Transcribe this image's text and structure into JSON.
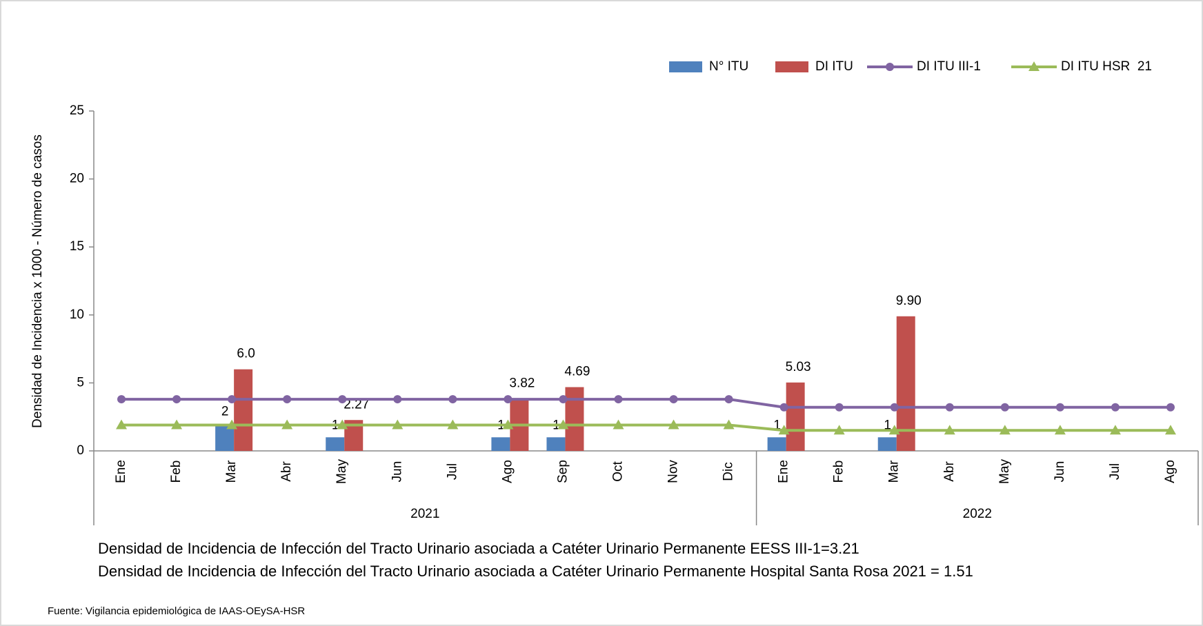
{
  "chart_data": {
    "type": "bar",
    "y_label": "Densidad de Incidencia x 1000  - Número de casos",
    "categories": [
      "Ene",
      "Feb",
      "Mar",
      "Abr",
      "May",
      "Jun",
      "Jul",
      "Ago",
      "Sep",
      "Oct",
      "Nov",
      "Dic",
      "Ene",
      "Feb",
      "Mar",
      "Abr",
      "May",
      "Jun",
      "Jul",
      "Ago"
    ],
    "groups": [
      {
        "label": "2021",
        "count": 12
      },
      {
        "label": "2022",
        "count": 8
      }
    ],
    "series": [
      {
        "name": "N° ITU",
        "type": "bar",
        "color": "#4f81bd",
        "values": [
          null,
          null,
          2,
          null,
          1,
          null,
          null,
          1,
          1,
          null,
          null,
          null,
          1,
          null,
          1,
          null,
          null,
          null,
          null,
          null
        ]
      },
      {
        "name": "DI ITU",
        "type": "bar",
        "color": "#c0504d",
        "values": [
          null,
          null,
          6,
          null,
          2.27,
          null,
          null,
          3.82,
          4.69,
          null,
          null,
          null,
          5.03,
          null,
          9.9,
          null,
          null,
          null,
          null,
          null
        ],
        "value_labels": [
          null,
          null,
          "6.0",
          null,
          "2.27",
          null,
          null,
          "3.82",
          "4.69",
          null,
          null,
          null,
          "5.03",
          null,
          "9.90",
          null,
          null,
          null,
          null,
          null
        ]
      },
      {
        "name": "DI ITU III-1",
        "type": "line",
        "marker": "circle",
        "color": "#8064a2",
        "values": [
          3.8,
          3.8,
          3.8,
          3.8,
          3.8,
          3.8,
          3.8,
          3.8,
          3.8,
          3.8,
          3.8,
          3.8,
          3.21,
          3.21,
          3.21,
          3.21,
          3.21,
          3.21,
          3.21,
          3.21
        ]
      },
      {
        "name": "DI ITU HSR  21",
        "type": "line",
        "marker": "triangle",
        "color": "#9bbb59",
        "values": [
          1.9,
          1.9,
          1.9,
          1.9,
          1.9,
          1.9,
          1.9,
          1.9,
          1.9,
          1.9,
          1.9,
          1.9,
          1.51,
          1.51,
          1.51,
          1.51,
          1.51,
          1.51,
          1.51,
          1.51
        ]
      }
    ],
    "ylim": [
      0,
      25
    ],
    "yticks": [
      0,
      5,
      10,
      15,
      20,
      25
    ],
    "grid": false,
    "legend": "top-right",
    "notes": [
      "Densidad de Incidencia de Infección del Tracto Urinario asociada a  Catéter Urinario Permanente  EESS III-1=3.21",
      "Densidad de Incidencia de Infección del Tracto Urinario asociada a  Catéter Urinario Permanente  Hospital Santa Rosa 2021  = 1.51"
    ],
    "source": "Fuente: Vigilancia epidemiológica de IAAS-OEySA-HSR"
  }
}
